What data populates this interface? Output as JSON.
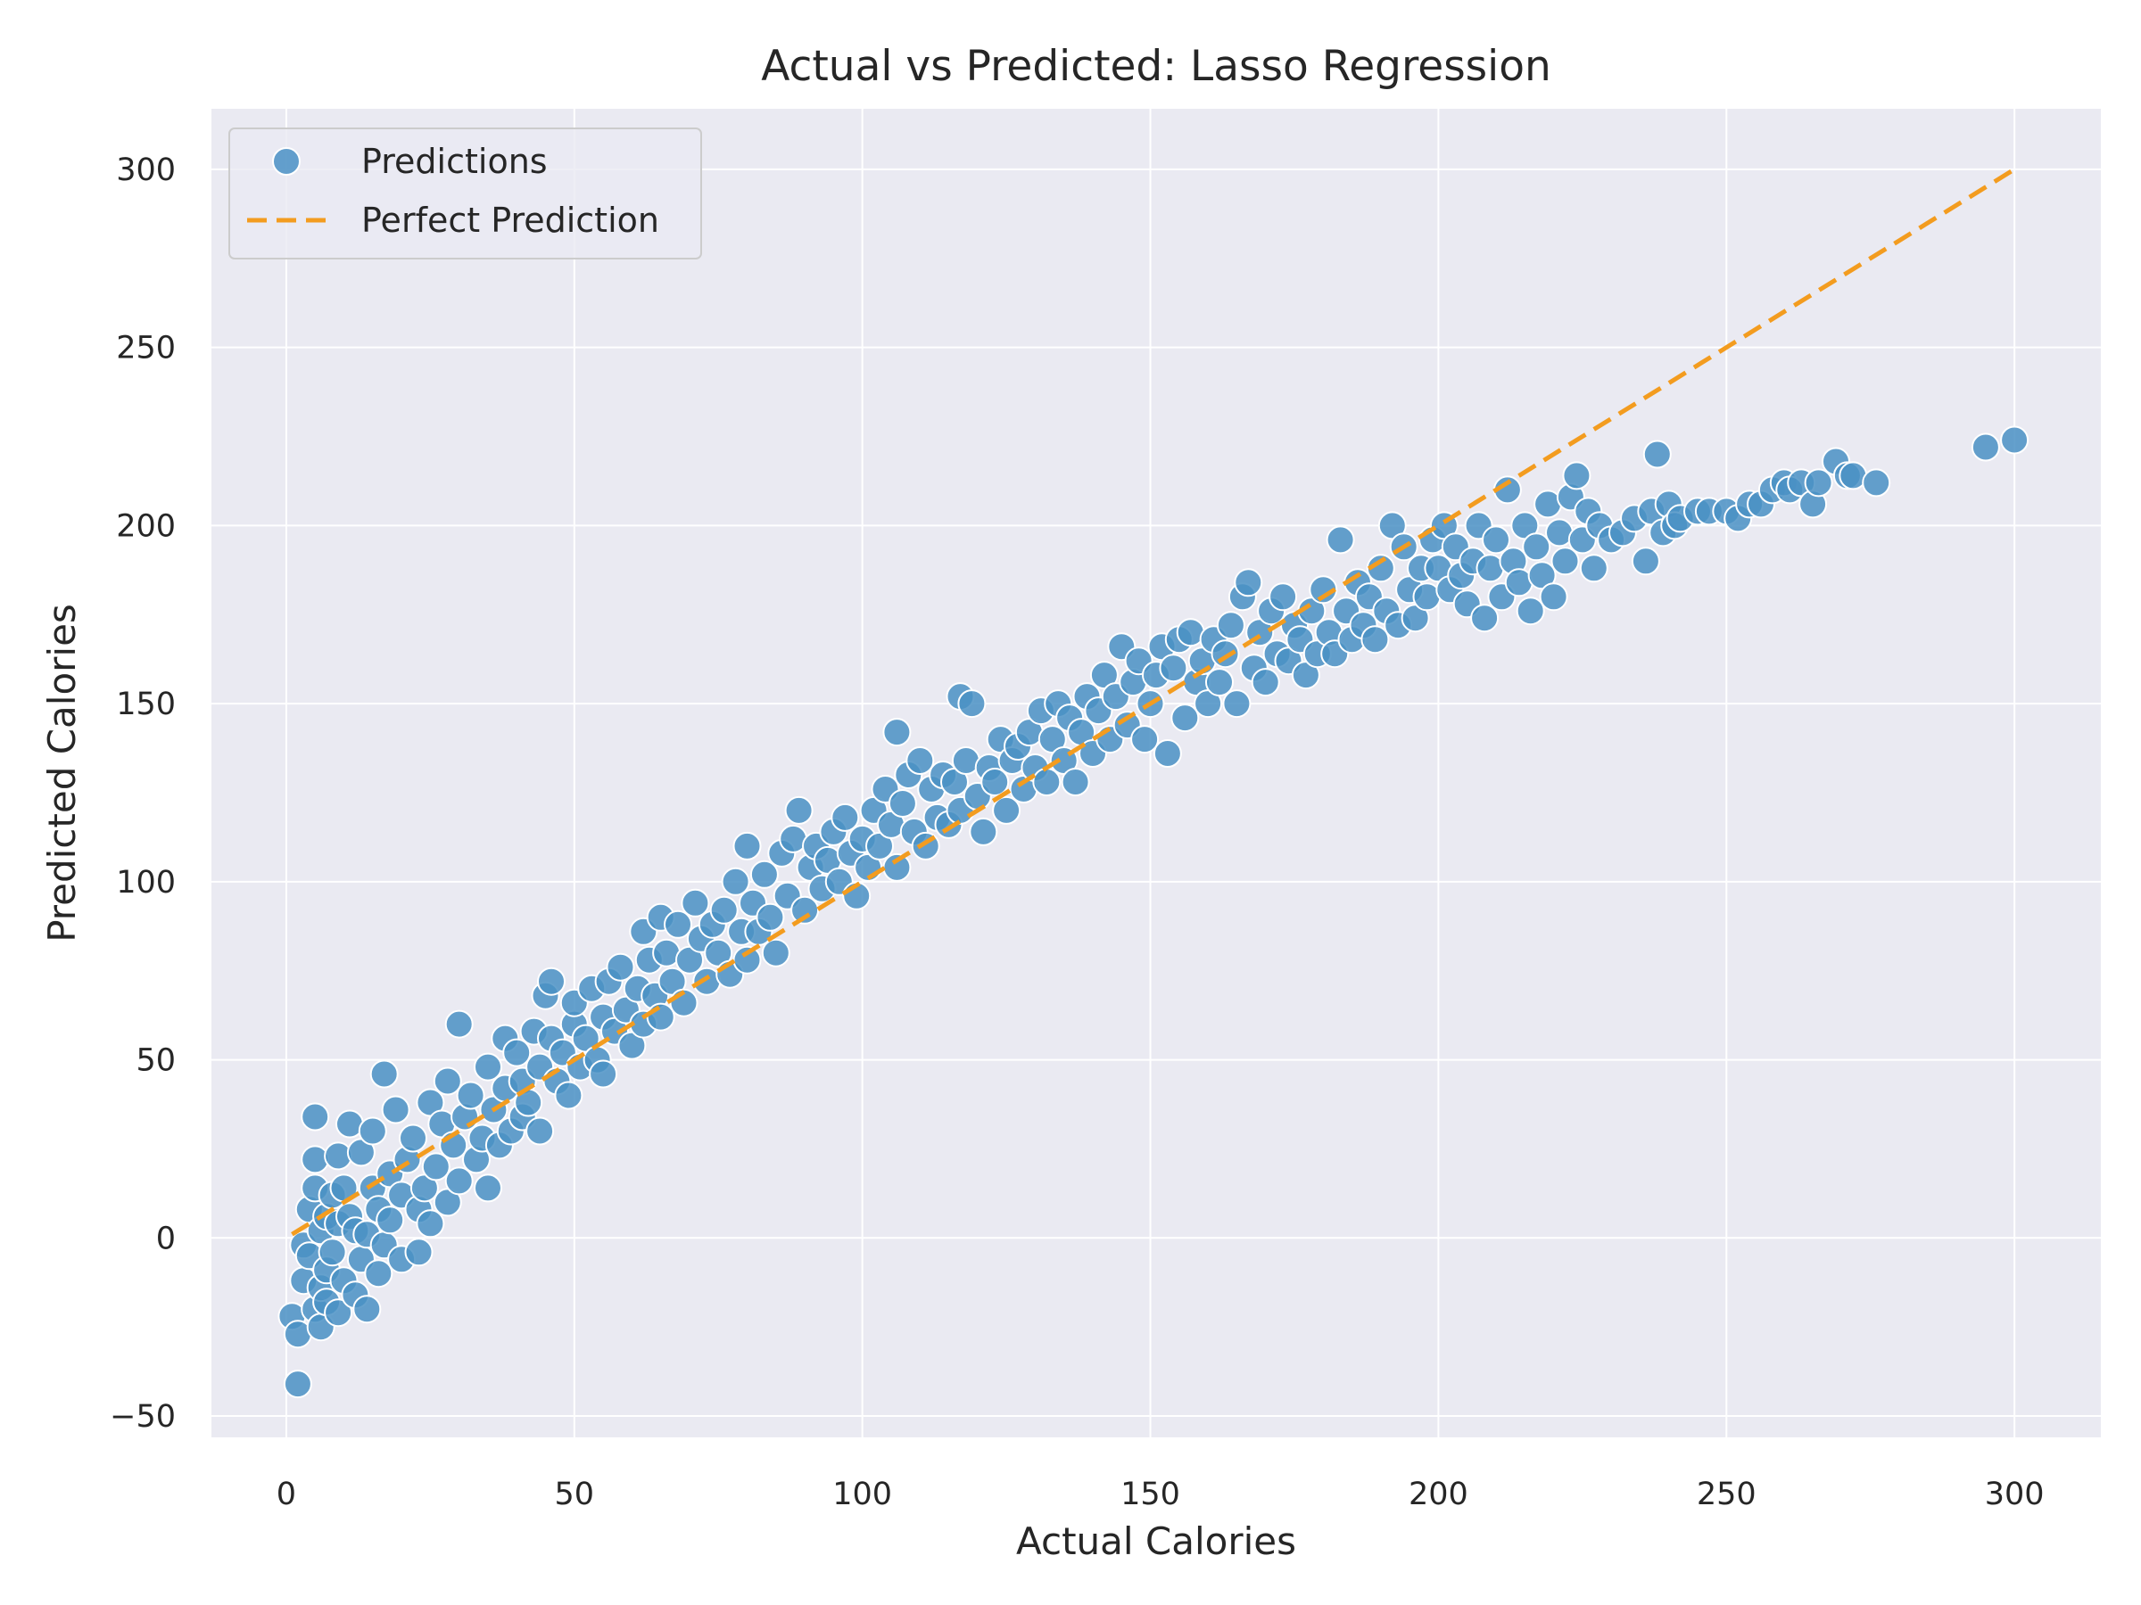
{
  "chart_data": {
    "type": "scatter",
    "title": "Actual vs Predicted: Lasso Regression",
    "xlabel": "Actual Calories",
    "ylabel": "Predicted Calories",
    "xlim": [
      -13,
      315
    ],
    "ylim": [
      -56,
      317
    ],
    "xticks": [
      0,
      50,
      100,
      150,
      200,
      250,
      300
    ],
    "xtick_labels": [
      "0",
      "50",
      "100",
      "150",
      "200",
      "250",
      "300"
    ],
    "yticks": [
      -50,
      0,
      50,
      100,
      150,
      200,
      250,
      300
    ],
    "ytick_labels": [
      "−50",
      "0",
      "50",
      "100",
      "150",
      "200",
      "250",
      "300"
    ],
    "grid": true,
    "legend_position": "top-left",
    "legend": [
      "Predictions",
      "Perfect Prediction"
    ],
    "colors": {
      "background": "#eaeaf2",
      "grid": "#ffffff",
      "points": "#4a90c4",
      "point_edge": "#ffffff",
      "reference_line": "#f39c1f"
    },
    "series": [
      {
        "name": "Predictions",
        "kind": "scatter",
        "points": [
          [
            1,
            -22
          ],
          [
            2,
            -41
          ],
          [
            2,
            -27
          ],
          [
            3,
            -12
          ],
          [
            3,
            -2
          ],
          [
            4,
            -5
          ],
          [
            4,
            8
          ],
          [
            5,
            14
          ],
          [
            5,
            22
          ],
          [
            5,
            34
          ],
          [
            5,
            -20
          ],
          [
            6,
            -25
          ],
          [
            6,
            -14
          ],
          [
            6,
            2
          ],
          [
            7,
            -9
          ],
          [
            7,
            6
          ],
          [
            7,
            -18
          ],
          [
            8,
            12
          ],
          [
            8,
            -4
          ],
          [
            9,
            -21
          ],
          [
            9,
            4
          ],
          [
            9,
            23
          ],
          [
            10,
            14
          ],
          [
            10,
            -12
          ],
          [
            11,
            6
          ],
          [
            11,
            32
          ],
          [
            12,
            -16
          ],
          [
            12,
            2
          ],
          [
            13,
            24
          ],
          [
            13,
            -6
          ],
          [
            14,
            -20
          ],
          [
            14,
            1
          ],
          [
            15,
            14
          ],
          [
            15,
            30
          ],
          [
            16,
            -10
          ],
          [
            16,
            8
          ],
          [
            17,
            46
          ],
          [
            17,
            -2
          ],
          [
            18,
            18
          ],
          [
            18,
            5
          ],
          [
            19,
            36
          ],
          [
            20,
            -6
          ],
          [
            20,
            12
          ],
          [
            21,
            22
          ],
          [
            22,
            28
          ],
          [
            23,
            -4
          ],
          [
            23,
            8
          ],
          [
            24,
            14
          ],
          [
            25,
            38
          ],
          [
            25,
            4
          ],
          [
            26,
            20
          ],
          [
            27,
            32
          ],
          [
            28,
            44
          ],
          [
            28,
            10
          ],
          [
            29,
            26
          ],
          [
            30,
            60
          ],
          [
            30,
            16
          ],
          [
            31,
            34
          ],
          [
            32,
            40
          ],
          [
            33,
            22
          ],
          [
            34,
            28
          ],
          [
            35,
            48
          ],
          [
            35,
            14
          ],
          [
            36,
            36
          ],
          [
            37,
            26
          ],
          [
            38,
            56
          ],
          [
            38,
            42
          ],
          [
            39,
            30
          ],
          [
            40,
            52
          ],
          [
            41,
            44
          ],
          [
            41,
            34
          ],
          [
            42,
            38
          ],
          [
            43,
            58
          ],
          [
            44,
            48
          ],
          [
            44,
            30
          ],
          [
            45,
            68
          ],
          [
            46,
            72
          ],
          [
            46,
            56
          ],
          [
            47,
            44
          ],
          [
            48,
            52
          ],
          [
            49,
            40
          ],
          [
            50,
            60
          ],
          [
            50,
            66
          ],
          [
            51,
            48
          ],
          [
            52,
            56
          ],
          [
            53,
            70
          ],
          [
            54,
            50
          ],
          [
            55,
            62
          ],
          [
            55,
            46
          ],
          [
            56,
            72
          ],
          [
            57,
            58
          ],
          [
            58,
            76
          ],
          [
            59,
            64
          ],
          [
            60,
            54
          ],
          [
            61,
            70
          ],
          [
            62,
            86
          ],
          [
            62,
            60
          ],
          [
            63,
            78
          ],
          [
            64,
            68
          ],
          [
            65,
            90
          ],
          [
            65,
            62
          ],
          [
            66,
            80
          ],
          [
            67,
            72
          ],
          [
            68,
            88
          ],
          [
            69,
            66
          ],
          [
            70,
            78
          ],
          [
            71,
            94
          ],
          [
            72,
            84
          ],
          [
            73,
            72
          ],
          [
            74,
            88
          ],
          [
            75,
            80
          ],
          [
            76,
            92
          ],
          [
            77,
            74
          ],
          [
            78,
            100
          ],
          [
            79,
            86
          ],
          [
            80,
            110
          ],
          [
            80,
            78
          ],
          [
            81,
            94
          ],
          [
            82,
            86
          ],
          [
            83,
            102
          ],
          [
            84,
            90
          ],
          [
            85,
            80
          ],
          [
            86,
            108
          ],
          [
            87,
            96
          ],
          [
            88,
            112
          ],
          [
            89,
            120
          ],
          [
            90,
            92
          ],
          [
            91,
            104
          ],
          [
            92,
            110
          ],
          [
            93,
            98
          ],
          [
            94,
            106
          ],
          [
            95,
            114
          ],
          [
            96,
            100
          ],
          [
            97,
            118
          ],
          [
            98,
            108
          ],
          [
            99,
            96
          ],
          [
            100,
            112
          ],
          [
            101,
            104
          ],
          [
            102,
            120
          ],
          [
            103,
            110
          ],
          [
            104,
            126
          ],
          [
            105,
            116
          ],
          [
            106,
            142
          ],
          [
            106,
            104
          ],
          [
            107,
            122
          ],
          [
            108,
            130
          ],
          [
            109,
            114
          ],
          [
            110,
            134
          ],
          [
            111,
            110
          ],
          [
            112,
            126
          ],
          [
            113,
            118
          ],
          [
            114,
            130
          ],
          [
            115,
            116
          ],
          [
            116,
            128
          ],
          [
            117,
            152
          ],
          [
            117,
            120
          ],
          [
            118,
            134
          ],
          [
            119,
            150
          ],
          [
            120,
            124
          ],
          [
            121,
            114
          ],
          [
            122,
            132
          ],
          [
            123,
            128
          ],
          [
            124,
            140
          ],
          [
            125,
            120
          ],
          [
            126,
            134
          ],
          [
            127,
            138
          ],
          [
            128,
            126
          ],
          [
            129,
            142
          ],
          [
            130,
            132
          ],
          [
            131,
            148
          ],
          [
            132,
            128
          ],
          [
            133,
            140
          ],
          [
            134,
            150
          ],
          [
            135,
            134
          ],
          [
            136,
            146
          ],
          [
            137,
            128
          ],
          [
            138,
            142
          ],
          [
            139,
            152
          ],
          [
            140,
            136
          ],
          [
            141,
            148
          ],
          [
            142,
            158
          ],
          [
            143,
            140
          ],
          [
            144,
            152
          ],
          [
            145,
            166
          ],
          [
            146,
            144
          ],
          [
            147,
            156
          ],
          [
            148,
            162
          ],
          [
            149,
            140
          ],
          [
            150,
            150
          ],
          [
            151,
            158
          ],
          [
            152,
            166
          ],
          [
            153,
            136
          ],
          [
            154,
            160
          ],
          [
            155,
            168
          ],
          [
            156,
            146
          ],
          [
            157,
            170
          ],
          [
            158,
            156
          ],
          [
            159,
            162
          ],
          [
            160,
            150
          ],
          [
            161,
            168
          ],
          [
            162,
            156
          ],
          [
            163,
            164
          ],
          [
            164,
            172
          ],
          [
            165,
            150
          ],
          [
            166,
            180
          ],
          [
            167,
            184
          ],
          [
            168,
            160
          ],
          [
            169,
            170
          ],
          [
            170,
            156
          ],
          [
            171,
            176
          ],
          [
            172,
            164
          ],
          [
            173,
            180
          ],
          [
            174,
            162
          ],
          [
            175,
            172
          ],
          [
            176,
            168
          ],
          [
            177,
            158
          ],
          [
            178,
            176
          ],
          [
            179,
            164
          ],
          [
            180,
            182
          ],
          [
            181,
            170
          ],
          [
            182,
            164
          ],
          [
            183,
            196
          ],
          [
            184,
            176
          ],
          [
            185,
            168
          ],
          [
            186,
            184
          ],
          [
            187,
            172
          ],
          [
            188,
            180
          ],
          [
            189,
            168
          ],
          [
            190,
            188
          ],
          [
            191,
            176
          ],
          [
            192,
            200
          ],
          [
            193,
            172
          ],
          [
            194,
            194
          ],
          [
            195,
            182
          ],
          [
            196,
            174
          ],
          [
            197,
            188
          ],
          [
            198,
            180
          ],
          [
            199,
            196
          ],
          [
            200,
            188
          ],
          [
            201,
            200
          ],
          [
            202,
            182
          ],
          [
            203,
            194
          ],
          [
            204,
            186
          ],
          [
            205,
            178
          ],
          [
            206,
            190
          ],
          [
            207,
            200
          ],
          [
            208,
            174
          ],
          [
            209,
            188
          ],
          [
            210,
            196
          ],
          [
            211,
            180
          ],
          [
            212,
            210
          ],
          [
            213,
            190
          ],
          [
            214,
            184
          ],
          [
            215,
            200
          ],
          [
            216,
            176
          ],
          [
            217,
            194
          ],
          [
            218,
            186
          ],
          [
            219,
            206
          ],
          [
            220,
            180
          ],
          [
            221,
            198
          ],
          [
            222,
            190
          ],
          [
            223,
            208
          ],
          [
            224,
            214
          ],
          [
            225,
            196
          ],
          [
            226,
            204
          ],
          [
            227,
            188
          ],
          [
            228,
            200
          ],
          [
            230,
            196
          ],
          [
            232,
            198
          ],
          [
            234,
            202
          ],
          [
            236,
            190
          ],
          [
            237,
            204
          ],
          [
            238,
            220
          ],
          [
            239,
            198
          ],
          [
            240,
            206
          ],
          [
            241,
            200
          ],
          [
            242,
            202
          ],
          [
            245,
            204
          ],
          [
            247,
            204
          ],
          [
            250,
            204
          ],
          [
            252,
            202
          ],
          [
            254,
            206
          ],
          [
            256,
            206
          ],
          [
            258,
            210
          ],
          [
            260,
            212
          ],
          [
            261,
            210
          ],
          [
            263,
            212
          ],
          [
            265,
            206
          ],
          [
            266,
            212
          ],
          [
            269,
            218
          ],
          [
            271,
            214
          ],
          [
            272,
            214
          ],
          [
            276,
            212
          ],
          [
            295,
            222
          ],
          [
            300,
            224
          ]
        ]
      },
      {
        "name": "Perfect Prediction",
        "kind": "line",
        "style": "dashed",
        "x": [
          1,
          300
        ],
        "y": [
          1,
          300
        ]
      }
    ]
  }
}
